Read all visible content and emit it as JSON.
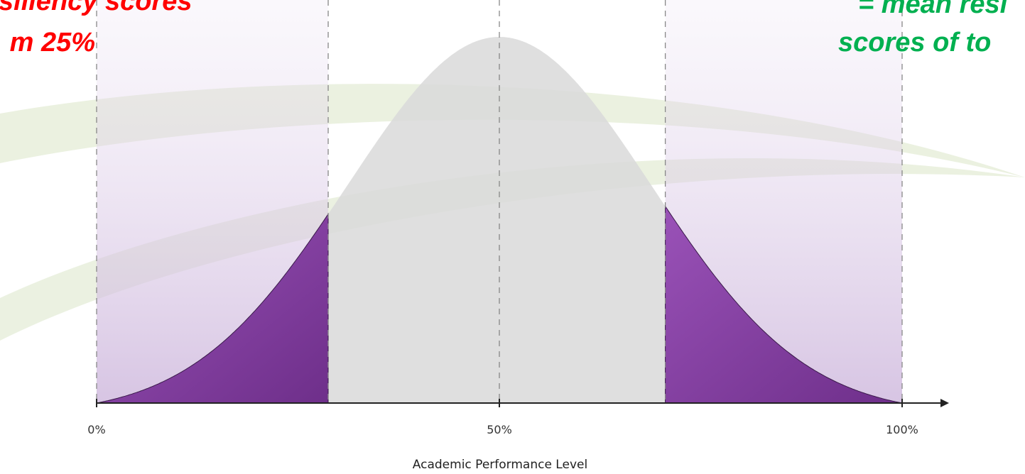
{
  "chart_data": {
    "type": "bell",
    "annotations": [
      {
        "text": "siliency scores",
        "color": "#ff0000"
      },
      {
        "text": "m 25%",
        "color": "#ff0000"
      },
      {
        "text": "= mean resi",
        "color": "#00b050"
      },
      {
        "text": "scores of to",
        "color": "#00b050"
      }
    ],
    "xlabel": "Academic Performance Level",
    "xlim": [
      0,
      100
    ],
    "xticks": [
      {
        "value": 0,
        "label": "0%"
      },
      {
        "value": 50,
        "label": "50%"
      },
      {
        "value": 100,
        "label": "100%"
      }
    ],
    "dividers": [
      0,
      28.75,
      50,
      70.6,
      100
    ],
    "highlights": [
      [
        0,
        28.75
      ],
      [
        70.6,
        100
      ]
    ],
    "curve_color": "#d9d9d9",
    "highlight_color": "#8040a0"
  }
}
